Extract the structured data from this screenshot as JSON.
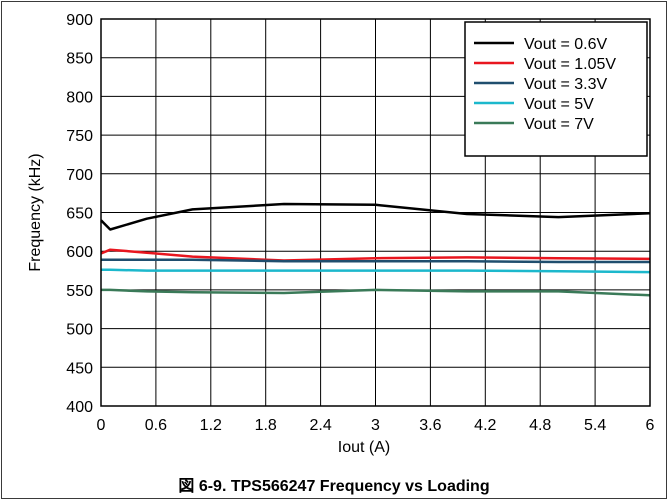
{
  "chart_data": {
    "type": "line",
    "title": "",
    "caption": "図 6-9. TPS566247 Frequency vs Loading",
    "xlabel": "Iout (A)",
    "ylabel": "Frequency (kHz)",
    "xlim": [
      0,
      6
    ],
    "ylim": [
      400,
      900
    ],
    "xticks": [
      0,
      0.6,
      1.2,
      1.8,
      2.4,
      3,
      3.6,
      4.2,
      4.8,
      5.4,
      6
    ],
    "xtick_labels": [
      "0",
      "0.6",
      "1.2",
      "1.8",
      "2.4",
      "3",
      "3.6",
      "4.2",
      "4.8",
      "5.4",
      "6"
    ],
    "yticks": [
      400,
      450,
      500,
      550,
      600,
      650,
      700,
      750,
      800,
      850,
      900
    ],
    "ytick_labels": [
      "400",
      "450",
      "500",
      "550",
      "600",
      "650",
      "700",
      "750",
      "800",
      "850",
      "900"
    ],
    "grid": true,
    "legend_position": "top-right",
    "series": [
      {
        "name": "Vout = 0.6V",
        "color": "#000000",
        "x": [
          0,
          0.1,
          0.5,
          1,
          2,
          3,
          4,
          5,
          6
        ],
        "y": [
          640,
          628,
          642,
          654,
          661,
          660,
          648,
          644,
          649
        ]
      },
      {
        "name": "Vout = 1.05V",
        "color": "#e8161f",
        "x": [
          0,
          0.1,
          0.5,
          1,
          2,
          3,
          4,
          5,
          6
        ],
        "y": [
          597,
          602,
          598,
          593,
          588,
          591,
          592,
          591,
          590
        ]
      },
      {
        "name": "Vout = 3.3V",
        "color": "#1f4e6e",
        "x": [
          0,
          0.1,
          0.5,
          1,
          2,
          3,
          4,
          5,
          6
        ],
        "y": [
          589,
          589,
          589,
          589,
          587,
          587,
          587,
          586,
          586
        ]
      },
      {
        "name": "Vout = 5V",
        "color": "#1cb8cc",
        "x": [
          0,
          0.1,
          0.5,
          1,
          2,
          3,
          4,
          5,
          6
        ],
        "y": [
          576,
          576,
          575,
          575,
          575,
          575,
          575,
          574,
          573
        ]
      },
      {
        "name": "Vout = 7V",
        "color": "#3a7a58",
        "x": [
          0,
          0.1,
          0.5,
          1,
          2,
          3,
          4,
          5,
          6
        ],
        "y": [
          550,
          550,
          548,
          547,
          546,
          550,
          548,
          548,
          543
        ]
      }
    ]
  }
}
